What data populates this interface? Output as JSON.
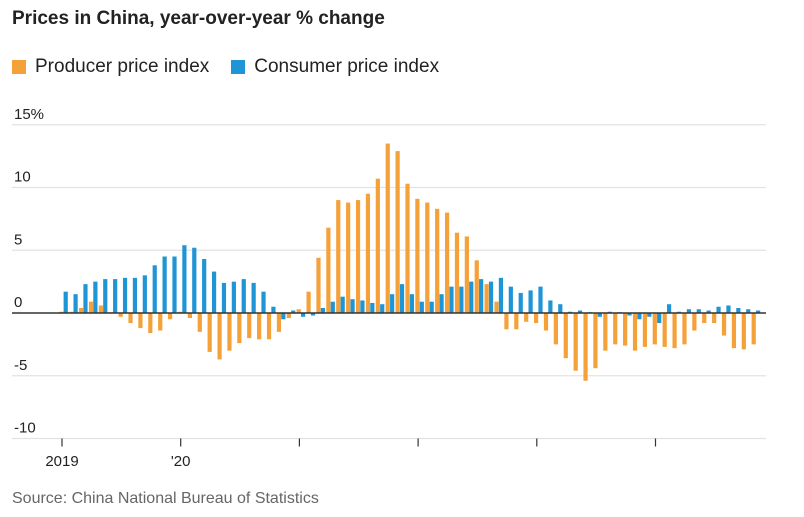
{
  "chart_data": {
    "type": "bar",
    "title": "Prices in China, year-over-year % change",
    "xlabel": "",
    "ylabel": "",
    "ylim": [
      -10,
      15
    ],
    "yticks": [
      {
        "v": 15,
        "label": "15%"
      },
      {
        "v": 10,
        "label": "10"
      },
      {
        "v": 5,
        "label": "5"
      },
      {
        "v": 0,
        "label": "0"
      },
      {
        "v": -5,
        "label": "-5"
      },
      {
        "v": -10,
        "label": "-10"
      }
    ],
    "xticks": [
      {
        "month_index": 0,
        "label": "2019"
      },
      {
        "month_index": 12,
        "label": "'20"
      },
      {
        "month_index": 24,
        "label": ""
      },
      {
        "month_index": 36,
        "label": ""
      },
      {
        "month_index": 48,
        "label": ""
      },
      {
        "month_index": 60,
        "label": ""
      }
    ],
    "start": "2019-01",
    "grid": true,
    "legend_position": "top-left",
    "colors": {
      "ppi": "#f5a13a",
      "cpi": "#1f95d6"
    },
    "series": [
      {
        "name": "Producer price index",
        "values": [
          0.1,
          0.1,
          0.4,
          0.9,
          0.6,
          0.0,
          -0.3,
          -0.8,
          -1.2,
          -1.6,
          -1.4,
          -0.5,
          0.1,
          -0.4,
          -1.5,
          -3.1,
          -3.7,
          -3.0,
          -2.4,
          -2.0,
          -2.1,
          -2.1,
          -1.5,
          -0.4,
          0.3,
          1.7,
          4.4,
          6.8,
          9.0,
          8.8,
          9.0,
          9.5,
          10.7,
          13.5,
          12.9,
          10.3,
          9.1,
          8.8,
          8.3,
          8.0,
          6.4,
          6.1,
          4.2,
          2.3,
          0.9,
          -1.3,
          -1.3,
          -0.7,
          -0.8,
          -1.4,
          -2.5,
          -3.6,
          -4.6,
          -5.4,
          -4.4,
          -3.0,
          -2.5,
          -2.6,
          -3.0,
          -2.7,
          -2.5,
          -2.7,
          -2.8,
          -2.5,
          -1.4,
          -0.8,
          -0.8,
          -1.8,
          -2.8,
          -2.9,
          -2.5
        ]
      },
      {
        "name": "Consumer price index",
        "values": [
          1.7,
          1.5,
          2.3,
          2.5,
          2.7,
          2.7,
          2.8,
          2.8,
          3.0,
          3.8,
          4.5,
          4.5,
          5.4,
          5.2,
          4.3,
          3.3,
          2.4,
          2.5,
          2.7,
          2.4,
          1.7,
          0.5,
          -0.5,
          0.2,
          -0.3,
          -0.2,
          0.4,
          0.9,
          1.3,
          1.1,
          1.0,
          0.8,
          0.7,
          1.5,
          2.3,
          1.5,
          0.9,
          0.9,
          1.5,
          2.1,
          2.1,
          2.5,
          2.7,
          2.5,
          2.8,
          2.1,
          1.6,
          1.8,
          2.1,
          1.0,
          0.7,
          0.1,
          0.2,
          0.0,
          -0.3,
          0.1,
          0.0,
          -0.2,
          -0.5,
          -0.3,
          -0.8,
          0.7,
          0.1,
          0.3,
          0.3,
          0.2,
          0.5,
          0.6,
          0.4,
          0.3,
          0.2
        ]
      }
    ]
  },
  "source": "Source: China National Bureau of Statistics"
}
